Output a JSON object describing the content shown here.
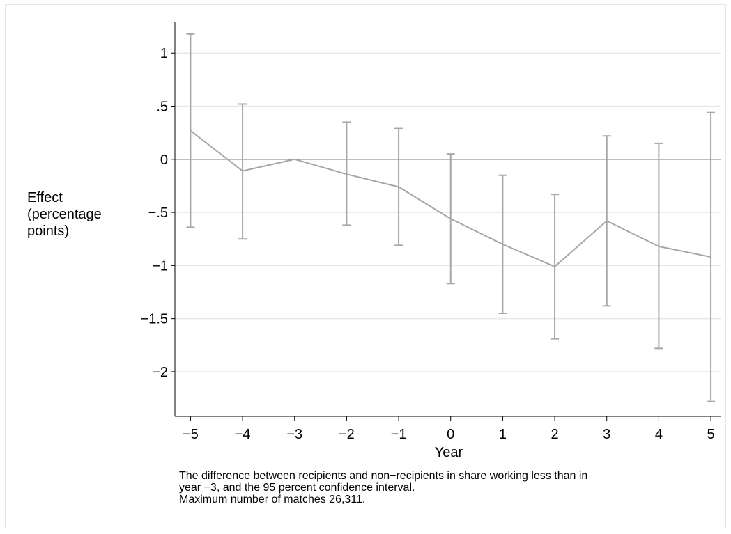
{
  "chart_data": {
    "type": "line",
    "xlabel": "Year",
    "ylabel_lines": [
      "Effect",
      "(percentage",
      "points)"
    ],
    "x": [
      -5,
      -4,
      -3,
      -2,
      -1,
      0,
      1,
      2,
      3,
      4,
      5
    ],
    "y": [
      0.27,
      -0.11,
      0.0,
      -0.14,
      -0.26,
      -0.56,
      -0.8,
      -1.01,
      -0.58,
      -0.82,
      -0.92
    ],
    "ci_lower": [
      -0.64,
      -0.75,
      null,
      -0.62,
      -0.81,
      -1.17,
      -1.45,
      -1.69,
      -1.38,
      -1.78,
      -2.28
    ],
    "ci_upper": [
      1.18,
      0.52,
      null,
      0.35,
      0.29,
      0.05,
      -0.15,
      -0.33,
      0.22,
      0.15,
      0.44
    ],
    "xticks": [
      -5,
      -4,
      -3,
      -2,
      -1,
      0,
      1,
      2,
      3,
      4,
      5
    ],
    "xtick_labels": [
      "−5",
      "−4",
      "−3",
      "−2",
      "−1",
      "0",
      "1",
      "2",
      "3",
      "4",
      "5"
    ],
    "yticks": [
      1,
      0.5,
      0,
      -0.5,
      -1,
      -1.5,
      -2
    ],
    "ytick_labels": [
      "1",
      ".5",
      "0",
      "−.5",
      "−1",
      "−1.5",
      "−2"
    ],
    "xlim": [
      -5.3,
      5.2
    ],
    "ylim": [
      -2.42,
      1.29
    ],
    "grid": true,
    "reference_line_y": 0,
    "colors": {
      "series": "#a6a6a6",
      "grid": "#e8e8e8",
      "axis": "#000000"
    }
  },
  "note_lines": [
    "The difference between recipients and non−recipients in share working less than in",
    "year −3, and the 95 percent confidence interval.",
    "Maximum number of matches 26,311."
  ]
}
